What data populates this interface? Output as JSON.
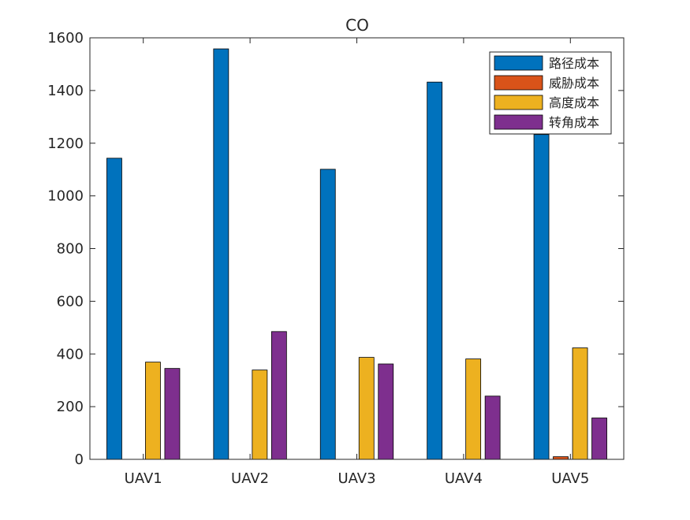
{
  "chart_data": {
    "type": "bar",
    "title": "CO",
    "xlabel": "",
    "ylabel": "",
    "categories": [
      "UAV1",
      "UAV2",
      "UAV3",
      "UAV4",
      "UAV5"
    ],
    "series": [
      {
        "name": "路径成本",
        "color": "#0072BD",
        "values": [
          1143,
          1558,
          1101,
          1432,
          1233
        ]
      },
      {
        "name": "威胁成本",
        "color": "#D95319",
        "values": [
          0,
          0,
          0,
          0,
          10
        ]
      },
      {
        "name": "高度成本",
        "color": "#EDB120",
        "values": [
          369,
          339,
          387,
          381,
          423
        ]
      },
      {
        "name": "转角成本",
        "color": "#7E2F8E",
        "values": [
          345,
          485,
          362,
          240,
          157
        ]
      }
    ],
    "ylim": [
      0,
      1600
    ],
    "yticks": [
      0,
      200,
      400,
      600,
      800,
      1000,
      1200,
      1400,
      1600
    ],
    "grid": false,
    "legend_position": "top-right"
  }
}
